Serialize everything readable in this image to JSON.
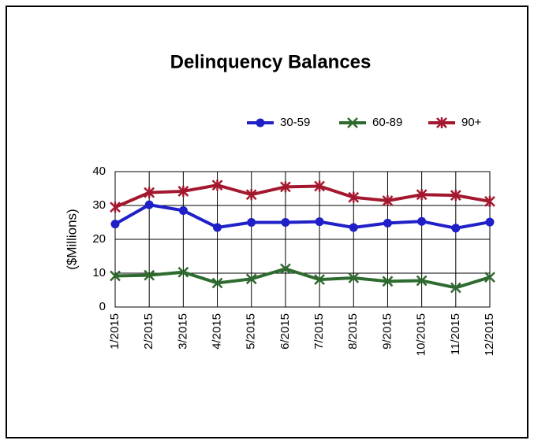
{
  "chart_data": {
    "type": "line",
    "title": "Delinquency Balances",
    "y_label": "($Millions)",
    "categories": [
      "1/2015",
      "2/2015",
      "3/2015",
      "4/2015",
      "5/2015",
      "6/2015",
      "7/2015",
      "8/2015",
      "9/2015",
      "10/2015",
      "11/2015",
      "12/2015"
    ],
    "series": [
      {
        "name": "30-59",
        "color": "#2020c8",
        "marker": "circle",
        "values": [
          24.5,
          30.2,
          28.5,
          23.5,
          25,
          25,
          25.2,
          23.5,
          24.8,
          25.3,
          23.3,
          25.1
        ]
      },
      {
        "name": "60-89",
        "color": "#2e6b2e",
        "marker": "x",
        "values": [
          9.2,
          9.4,
          10.3,
          7.1,
          8.3,
          11.3,
          8.1,
          8.6,
          7.6,
          7.8,
          5.7,
          8.8
        ]
      },
      {
        "name": "90+",
        "color": "#a3182e",
        "marker": "star",
        "values": [
          29.5,
          33.8,
          34.2,
          36,
          33.2,
          35.5,
          35.7,
          32.4,
          31.4,
          33.2,
          33,
          31.2
        ]
      }
    ],
    "ylim": [
      0,
      40
    ],
    "yticks": [
      0,
      10,
      20,
      30,
      40
    ],
    "grid": true,
    "legend": "top-right"
  }
}
